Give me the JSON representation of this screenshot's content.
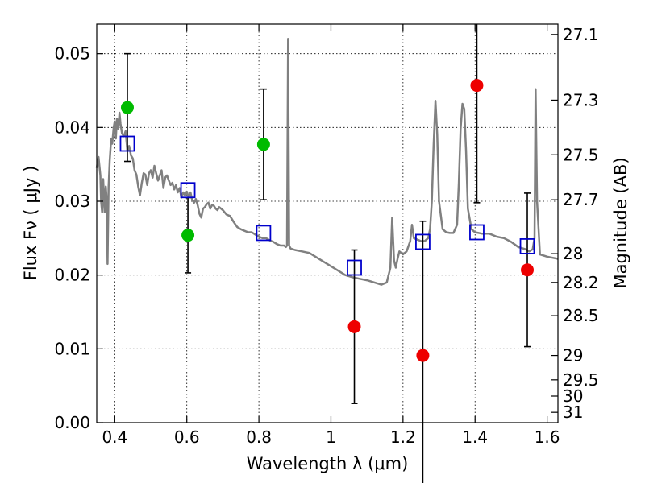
{
  "chart_data": {
    "type": "scatter",
    "xlabel": "Wavelength  λ (μm)",
    "ylabel": "Flux  Fν  ( μJy )",
    "ylabel_right": "Magnitude (AB)",
    "xlim": [
      0.35,
      1.63
    ],
    "ylim": [
      0.0,
      0.054
    ],
    "grid": true,
    "x_ticks": [
      {
        "value": 0.4,
        "label": "0.4"
      },
      {
        "value": 0.6,
        "label": "0.6"
      },
      {
        "value": 0.8,
        "label": "0.8"
      },
      {
        "value": 1.0,
        "label": "1"
      },
      {
        "value": 1.2,
        "label": "1.2"
      },
      {
        "value": 1.4,
        "label": "1.4"
      },
      {
        "value": 1.6,
        "label": "1.6"
      }
    ],
    "y_ticks": [
      {
        "value": 0.0,
        "label": "0.00"
      },
      {
        "value": 0.01,
        "label": "0.01"
      },
      {
        "value": 0.02,
        "label": "0.02"
      },
      {
        "value": 0.03,
        "label": "0.03"
      },
      {
        "value": 0.04,
        "label": "0.04"
      },
      {
        "value": 0.05,
        "label": "0.05"
      }
    ],
    "right_ticks": [
      {
        "flux": 0.0526,
        "label": "27.1"
      },
      {
        "flux": 0.0437,
        "label": "27.3"
      },
      {
        "flux": 0.0363,
        "label": "27.5"
      },
      {
        "flux": 0.0302,
        "label": "27.7"
      },
      {
        "flux": 0.0229,
        "label": "28"
      },
      {
        "flux": 0.019,
        "label": "28.2"
      },
      {
        "flux": 0.0145,
        "label": "28.5"
      },
      {
        "flux": 0.0091,
        "label": "29"
      },
      {
        "flux": 0.0058,
        "label": "29.5"
      },
      {
        "flux": 0.0036,
        "label": "30"
      },
      {
        "flux": 0.0014,
        "label": "31"
      }
    ],
    "model_spectrum": {
      "color": "#808080",
      "points": [
        [
          0.35,
          0.0345
        ],
        [
          0.355,
          0.036
        ],
        [
          0.36,
          0.0335
        ],
        [
          0.362,
          0.03
        ],
        [
          0.365,
          0.0285
        ],
        [
          0.368,
          0.033
        ],
        [
          0.372,
          0.0285
        ],
        [
          0.375,
          0.032
        ],
        [
          0.378,
          0.03
        ],
        [
          0.38,
          0.0215
        ],
        [
          0.383,
          0.032
        ],
        [
          0.386,
          0.0355
        ],
        [
          0.39,
          0.0385
        ],
        [
          0.393,
          0.0378
        ],
        [
          0.397,
          0.04
        ],
        [
          0.4,
          0.0408
        ],
        [
          0.403,
          0.0385
        ],
        [
          0.406,
          0.0412
        ],
        [
          0.41,
          0.0398
        ],
        [
          0.413,
          0.042
        ],
        [
          0.416,
          0.0405
        ],
        [
          0.42,
          0.0392
        ],
        [
          0.425,
          0.0388
        ],
        [
          0.43,
          0.0395
        ],
        [
          0.435,
          0.0368
        ],
        [
          0.44,
          0.0375
        ],
        [
          0.445,
          0.0362
        ],
        [
          0.45,
          0.0358
        ],
        [
          0.455,
          0.0342
        ],
        [
          0.46,
          0.0336
        ],
        [
          0.465,
          0.032
        ],
        [
          0.47,
          0.0308
        ],
        [
          0.475,
          0.0325
        ],
        [
          0.48,
          0.0338
        ],
        [
          0.485,
          0.0336
        ],
        [
          0.49,
          0.0322
        ],
        [
          0.495,
          0.0338
        ],
        [
          0.5,
          0.0342
        ],
        [
          0.505,
          0.0332
        ],
        [
          0.51,
          0.0348
        ],
        [
          0.515,
          0.0338
        ],
        [
          0.52,
          0.0328
        ],
        [
          0.525,
          0.0335
        ],
        [
          0.53,
          0.0342
        ],
        [
          0.535,
          0.0318
        ],
        [
          0.54,
          0.0332
        ],
        [
          0.545,
          0.0335
        ],
        [
          0.55,
          0.0328
        ],
        [
          0.555,
          0.0322
        ],
        [
          0.56,
          0.0325
        ],
        [
          0.565,
          0.0316
        ],
        [
          0.57,
          0.0322
        ],
        [
          0.575,
          0.0312
        ],
        [
          0.58,
          0.0318
        ],
        [
          0.585,
          0.0305
        ],
        [
          0.59,
          0.0312
        ],
        [
          0.595,
          0.0308
        ],
        [
          0.6,
          0.0313
        ],
        [
          0.605,
          0.0305
        ],
        [
          0.61,
          0.0312
        ],
        [
          0.615,
          0.0302
        ],
        [
          0.62,
          0.0298
        ],
        [
          0.625,
          0.0303
        ],
        [
          0.63,
          0.0295
        ],
        [
          0.635,
          0.0283
        ],
        [
          0.64,
          0.0278
        ],
        [
          0.645,
          0.029
        ],
        [
          0.65,
          0.0292
        ],
        [
          0.655,
          0.0296
        ],
        [
          0.66,
          0.0298
        ],
        [
          0.665,
          0.029
        ],
        [
          0.67,
          0.0295
        ],
        [
          0.675,
          0.0294
        ],
        [
          0.68,
          0.029
        ],
        [
          0.685,
          0.0288
        ],
        [
          0.69,
          0.0292
        ],
        [
          0.7,
          0.0288
        ],
        [
          0.71,
          0.0282
        ],
        [
          0.72,
          0.028
        ],
        [
          0.73,
          0.0272
        ],
        [
          0.74,
          0.0265
        ],
        [
          0.75,
          0.0262
        ],
        [
          0.76,
          0.026
        ],
        [
          0.77,
          0.0258
        ],
        [
          0.78,
          0.0258
        ],
        [
          0.79,
          0.0255
        ],
        [
          0.8,
          0.0252
        ],
        [
          0.81,
          0.025
        ],
        [
          0.82,
          0.025
        ],
        [
          0.83,
          0.0247
        ],
        [
          0.84,
          0.0245
        ],
        [
          0.85,
          0.0242
        ],
        [
          0.86,
          0.024
        ],
        [
          0.87,
          0.024
        ],
        [
          0.875,
          0.0238
        ],
        [
          0.878,
          0.024
        ],
        [
          0.881,
          0.052
        ],
        [
          0.884,
          0.024
        ],
        [
          0.888,
          0.0236
        ],
        [
          0.9,
          0.0234
        ],
        [
          0.92,
          0.0232
        ],
        [
          0.94,
          0.023
        ],
        [
          0.96,
          0.0224
        ],
        [
          0.98,
          0.0218
        ],
        [
          1.0,
          0.0212
        ],
        [
          1.02,
          0.0206
        ],
        [
          1.04,
          0.02
        ],
        [
          1.06,
          0.0197
        ],
        [
          1.08,
          0.0195
        ],
        [
          1.1,
          0.0193
        ],
        [
          1.12,
          0.019
        ],
        [
          1.14,
          0.0187
        ],
        [
          1.155,
          0.019
        ],
        [
          1.165,
          0.021
        ],
        [
          1.17,
          0.0278
        ],
        [
          1.175,
          0.022
        ],
        [
          1.18,
          0.021
        ],
        [
          1.185,
          0.0222
        ],
        [
          1.19,
          0.0232
        ],
        [
          1.2,
          0.0228
        ],
        [
          1.21,
          0.0232
        ],
        [
          1.22,
          0.0246
        ],
        [
          1.225,
          0.0268
        ],
        [
          1.23,
          0.025
        ],
        [
          1.24,
          0.0248
        ],
        [
          1.25,
          0.0246
        ],
        [
          1.26,
          0.0246
        ],
        [
          1.27,
          0.025
        ],
        [
          1.275,
          0.0262
        ],
        [
          1.28,
          0.03
        ],
        [
          1.285,
          0.0375
        ],
        [
          1.29,
          0.0436
        ],
        [
          1.295,
          0.039
        ],
        [
          1.3,
          0.03
        ],
        [
          1.31,
          0.0262
        ],
        [
          1.32,
          0.0258
        ],
        [
          1.33,
          0.0257
        ],
        [
          1.34,
          0.0257
        ],
        [
          1.35,
          0.0268
        ],
        [
          1.355,
          0.0325
        ],
        [
          1.36,
          0.0398
        ],
        [
          1.365,
          0.0432
        ],
        [
          1.37,
          0.0425
        ],
        [
          1.375,
          0.037
        ],
        [
          1.38,
          0.029
        ],
        [
          1.39,
          0.0262
        ],
        [
          1.4,
          0.0258
        ],
        [
          1.42,
          0.0256
        ],
        [
          1.44,
          0.0256
        ],
        [
          1.46,
          0.0252
        ],
        [
          1.48,
          0.025
        ],
        [
          1.5,
          0.0245
        ],
        [
          1.52,
          0.0238
        ],
        [
          1.54,
          0.0235
        ],
        [
          1.55,
          0.0232
        ],
        [
          1.56,
          0.0235
        ],
        [
          1.565,
          0.025
        ],
        [
          1.568,
          0.0452
        ],
        [
          1.572,
          0.03
        ],
        [
          1.58,
          0.0228
        ],
        [
          1.6,
          0.0225
        ],
        [
          1.63,
          0.0222
        ]
      ]
    },
    "series": [
      {
        "marker": "open-square",
        "color": "#0000cc",
        "points": [
          {
            "x": 0.435,
            "y": 0.0378
          },
          {
            "x": 0.603,
            "y": 0.0315
          },
          {
            "x": 0.813,
            "y": 0.0257
          },
          {
            "x": 1.065,
            "y": 0.021
          },
          {
            "x": 1.255,
            "y": 0.0245
          },
          {
            "x": 1.405,
            "y": 0.0258
          },
          {
            "x": 1.545,
            "y": 0.0239
          }
        ]
      },
      {
        "marker": "filled-circle",
        "color": "#00bb00",
        "points": [
          {
            "x": 0.435,
            "y": 0.0427,
            "err": 0.0073
          },
          {
            "x": 0.603,
            "y": 0.0254,
            "err": 0.0051
          },
          {
            "x": 0.813,
            "y": 0.0377,
            "err": 0.0075
          }
        ]
      },
      {
        "marker": "filled-circle",
        "color": "#ee0000",
        "points": [
          {
            "x": 1.065,
            "y": 0.013,
            "err": 0.0104
          },
          {
            "x": 1.255,
            "y": 0.0091,
            "err": 0.0182
          },
          {
            "x": 1.405,
            "y": 0.0457,
            "err": 0.0159
          },
          {
            "x": 1.545,
            "y": 0.0207,
            "err": 0.0104
          }
        ]
      }
    ]
  }
}
